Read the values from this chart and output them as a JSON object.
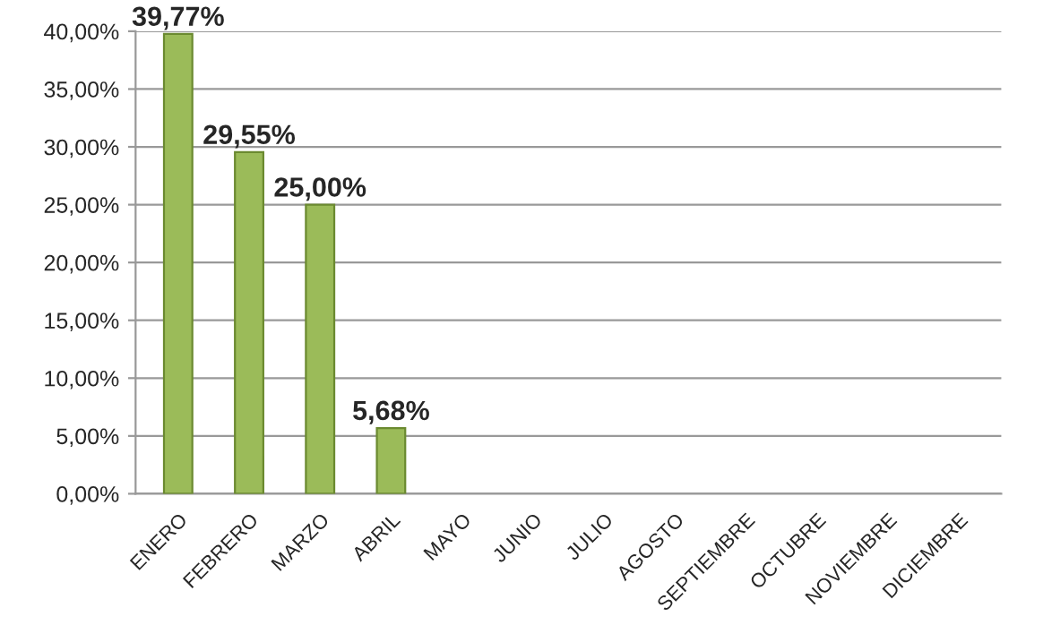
{
  "chart_data": {
    "type": "bar",
    "categories": [
      "ENERO",
      "FEBRERO",
      "MARZO",
      "ABRIL",
      "MAYO",
      "JUNIO",
      "JULIO",
      "AGOSTO",
      "SEPTIEMBRE",
      "OCTUBRE",
      "NOVIEMBRE",
      "DICIEMBRE"
    ],
    "values": [
      39.77,
      29.55,
      25.0,
      5.68,
      null,
      null,
      null,
      null,
      null,
      null,
      null,
      null
    ],
    "value_labels": [
      "39,77%",
      "29,55%",
      "25,00%",
      "5,68%",
      null,
      null,
      null,
      null,
      null,
      null,
      null,
      null
    ],
    "color": "#9bbb59",
    "ylim": [
      0,
      40
    ],
    "yticks": [
      {
        "value": 0,
        "label": "0,00%"
      },
      {
        "value": 5,
        "label": "5,00%"
      },
      {
        "value": 10,
        "label": "10,00%"
      },
      {
        "value": 15,
        "label": "15,00%"
      },
      {
        "value": 20,
        "label": "20,00%"
      },
      {
        "value": 25,
        "label": "25,00%"
      },
      {
        "value": 30,
        "label": "30,00%"
      },
      {
        "value": 35,
        "label": "35,00%"
      },
      {
        "value": 40,
        "label": "40,00%"
      }
    ],
    "grid": "y"
  }
}
